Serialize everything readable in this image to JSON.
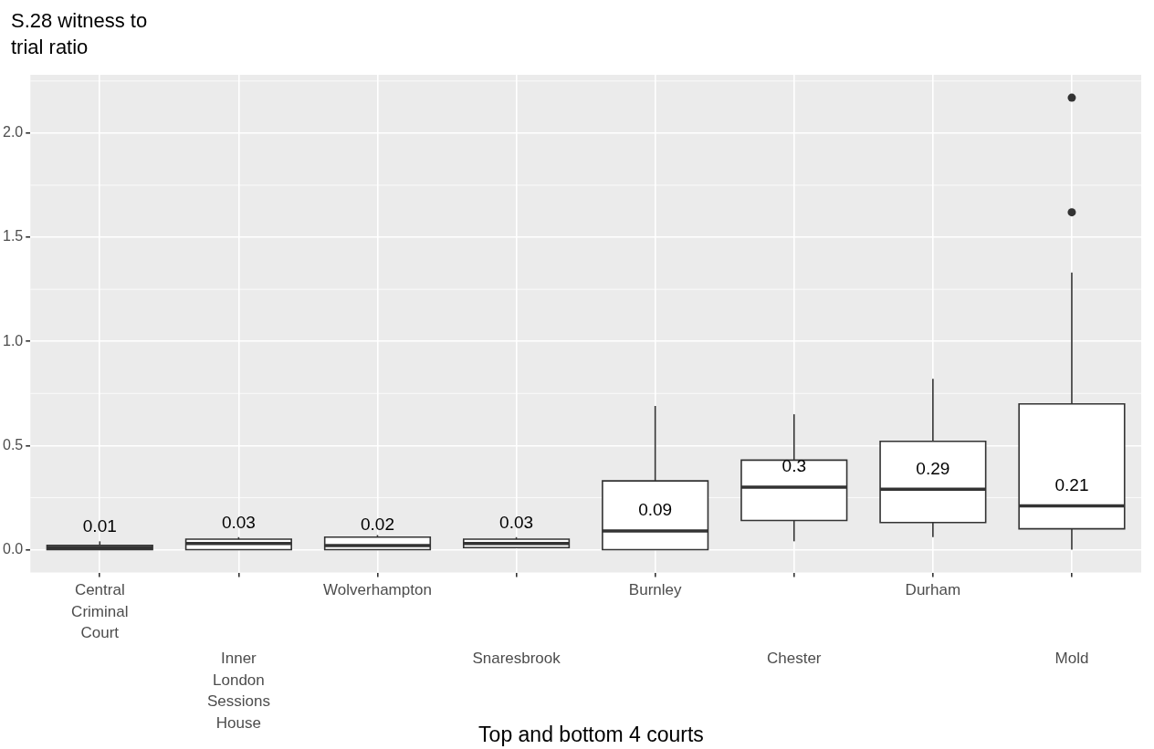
{
  "chart_data": {
    "type": "box",
    "ylabel": "S.28 witness to trial ratio",
    "xlabel": "Top and bottom 4 courts",
    "categories": [
      "Central Criminal Court",
      "Inner London Sessions House",
      "Wolverhampton",
      "Snaresbrook",
      "Burnley",
      "Chester",
      "Durham",
      "Mold"
    ],
    "boxes": [
      {
        "low": 0,
        "q1": 0,
        "median": 0.01,
        "q3": 0.02,
        "high": 0.04
      },
      {
        "low": 0,
        "q1": 0,
        "median": 0.03,
        "q3": 0.05,
        "high": 0.06
      },
      {
        "low": 0,
        "q1": 0,
        "median": 0.02,
        "q3": 0.06,
        "high": 0.07
      },
      {
        "low": 0.01,
        "q1": 0.01,
        "median": 0.03,
        "q3": 0.05,
        "high": 0.06
      },
      {
        "low": 0,
        "q1": 0,
        "median": 0.09,
        "q3": 0.33,
        "high": 0.69
      },
      {
        "low": 0.04,
        "q1": 0.14,
        "median": 0.3,
        "q3": 0.43,
        "high": 0.65
      },
      {
        "low": 0.06,
        "q1": 0.13,
        "median": 0.29,
        "q3": 0.52,
        "high": 0.82
      },
      {
        "low": 0,
        "q1": 0.1,
        "median": 0.21,
        "q3": 0.7,
        "high": 1.33,
        "outliers": [
          1.62,
          2.17
        ]
      }
    ],
    "annotations": [
      {
        "text": "0.01",
        "x": "Central Criminal Court",
        "y": 0.01
      },
      {
        "text": "0.03",
        "x": "Inner London Sessions House",
        "y": 0.03
      },
      {
        "text": "0.02",
        "x": "Wolverhampton",
        "y": 0.02
      },
      {
        "text": "0.03",
        "x": "Snaresbrook",
        "y": 0.03
      },
      {
        "text": "0.09",
        "x": "Burnley",
        "y": 0.09
      },
      {
        "text": "0.3",
        "x": "Chester",
        "y": 0.3
      },
      {
        "text": "0.29",
        "x": "Durham",
        "y": 0.29
      },
      {
        "text": "0.21",
        "x": "Mold",
        "y": 0.21
      }
    ],
    "ylim": [
      -0.11,
      2.28
    ],
    "yticks": [
      {
        "value": 0,
        "label": "0.0"
      },
      0.5,
      {
        "value": 1,
        "label": "1.0"
      },
      1.5,
      {
        "value": 2,
        "label": "2.0"
      }
    ],
    "grid": true
  }
}
